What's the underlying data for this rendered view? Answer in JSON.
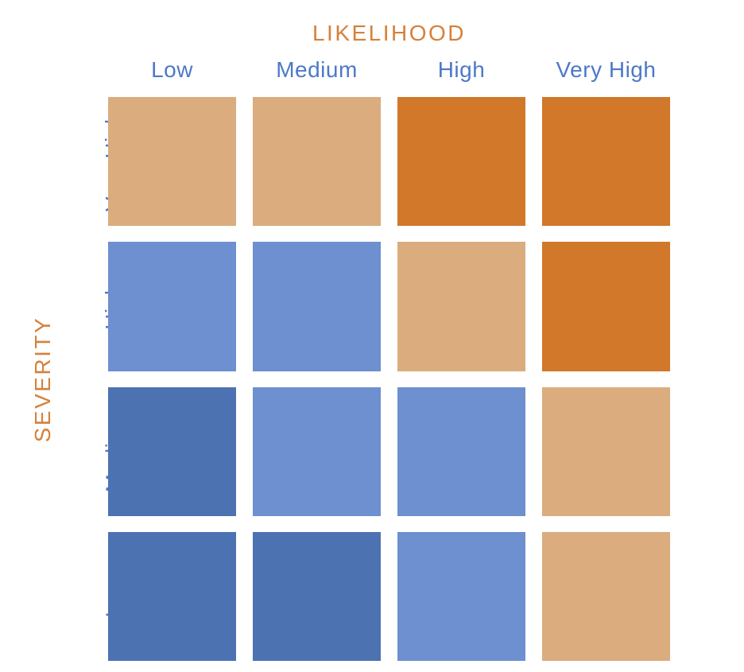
{
  "title": "LIKELIHOOD",
  "y_axis_label": "SEVERITY",
  "colors": {
    "background": "#FFFFFF",
    "title_text": "#D5813B",
    "axis_label_text": "#D5813B",
    "category_text": "#4D79C7",
    "level_low": "#4C72B2",
    "level_moderate": "#6E8FD0",
    "level_elevated": "#DAAC7E",
    "level_severe": "#D1782A"
  },
  "chart_data": {
    "type": "heatmap",
    "title": "LIKELIHOOD",
    "xlabel": "LIKELIHOOD",
    "ylabel": "SEVERITY",
    "x_categories": [
      "Low",
      "Medium",
      "High",
      "Very High"
    ],
    "y_categories": [
      "Very High",
      "High",
      "Medium",
      "Low"
    ],
    "grid": false,
    "legend_position": "none",
    "values": [
      [
        "elevated",
        "elevated",
        "severe",
        "severe"
      ],
      [
        "moderate",
        "moderate",
        "elevated",
        "severe"
      ],
      [
        "low",
        "moderate",
        "moderate",
        "elevated"
      ],
      [
        "low",
        "low",
        "moderate",
        "elevated"
      ]
    ],
    "palette": {
      "low": "#4C72B2",
      "moderate": "#6E8FD0",
      "elevated": "#DAAC7E",
      "severe": "#D1782A"
    }
  }
}
